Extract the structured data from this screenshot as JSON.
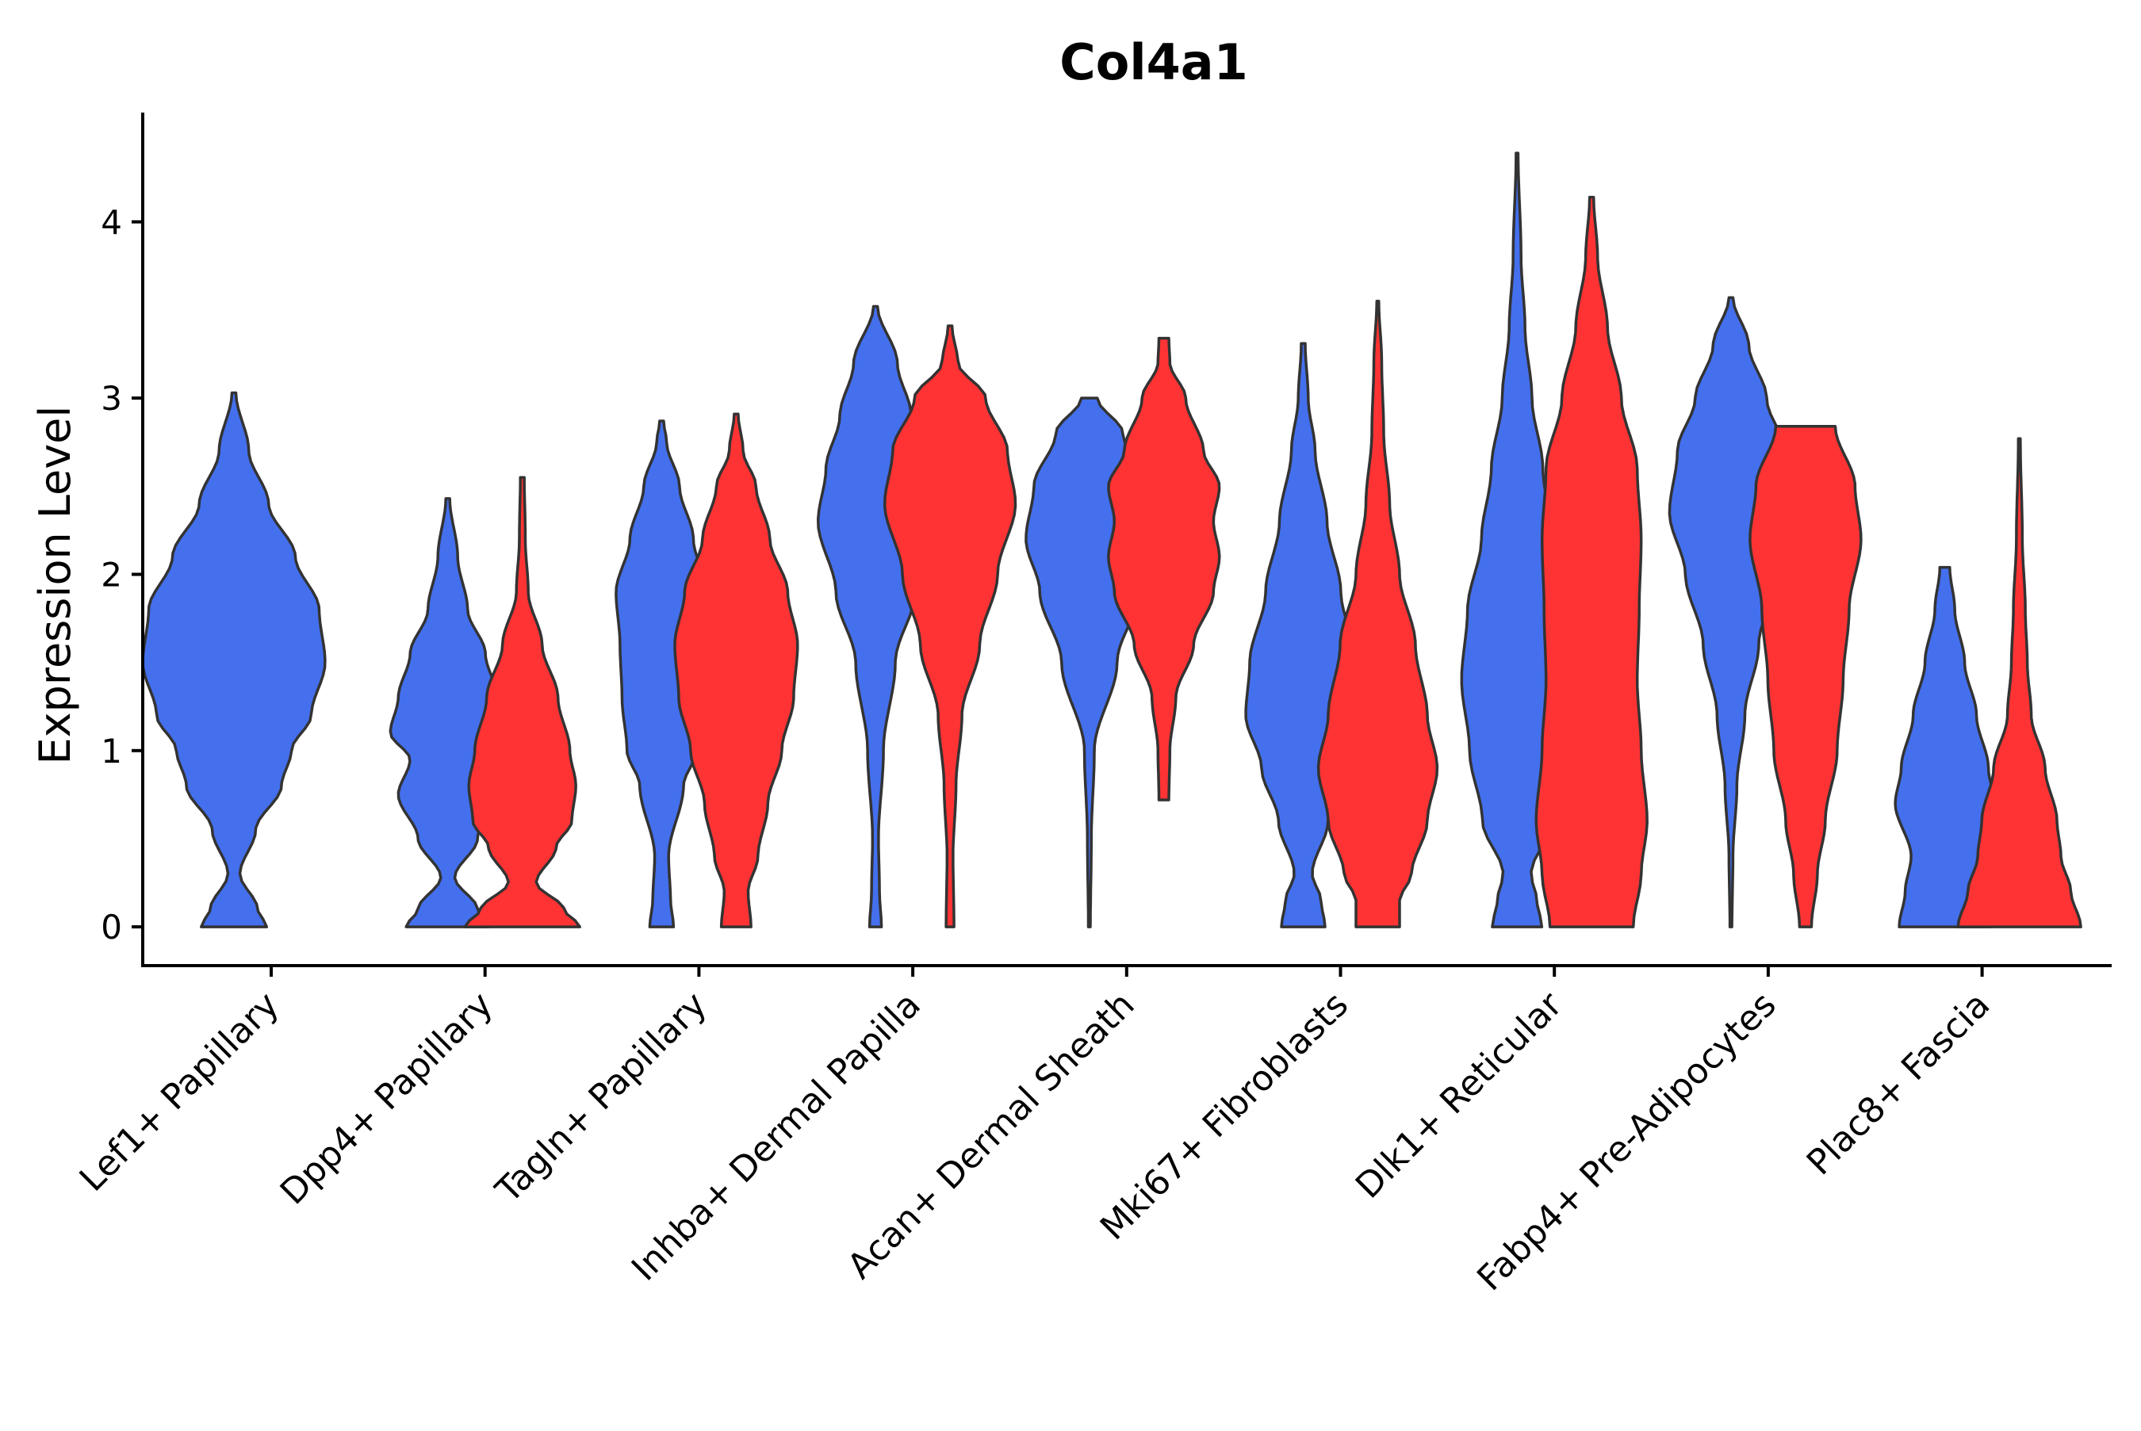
{
  "chart_data": {
    "type": "violin",
    "title": "Col4a1",
    "xlabel": "",
    "ylabel": "Expression Level",
    "ylim": [
      -0.22,
      4.62
    ],
    "yticks": [
      0,
      1,
      2,
      3,
      4
    ],
    "grid": false,
    "legend": "none",
    "colors": {
      "group_a": "#4470EE",
      "group_b": "#FF3333",
      "outline": "#333333"
    },
    "categories": [
      "Lef1+ Papillary",
      "Dpp4+ Papillary",
      "Tagln+ Papillary",
      "Inhba+ Dermal Papilla",
      "Acan+ Dermal Sheath",
      "Mki67+ Fibroblasts",
      "Dlk1+ Reticular",
      "Fabp4+ Pre-Adipocytes",
      "Plac8+ Fascia"
    ],
    "series": [
      {
        "name": "group_a",
        "color": "#4470EE",
        "violins": [
          {
            "category": "Lef1+ Papillary",
            "min": 0,
            "max": 3.03,
            "profile": [
              [
                0,
                0.33
              ],
              [
                0.1,
                0.24
              ],
              [
                0.3,
                0.06
              ],
              [
                0.55,
                0.22
              ],
              [
                0.8,
                0.48
              ],
              [
                1.0,
                0.58
              ],
              [
                1.2,
                0.78
              ],
              [
                1.5,
                0.92
              ],
              [
                1.8,
                0.86
              ],
              [
                2.1,
                0.62
              ],
              [
                2.4,
                0.35
              ],
              [
                2.7,
                0.15
              ],
              [
                3.03,
                0.02
              ]
            ]
          },
          {
            "category": "Dpp4+ Papillary",
            "min": 0,
            "max": 2.43,
            "profile": [
              [
                0,
                0.42
              ],
              [
                0.1,
                0.3
              ],
              [
                0.28,
                0.07
              ],
              [
                0.5,
                0.3
              ],
              [
                0.75,
                0.5
              ],
              [
                0.95,
                0.38
              ],
              [
                1.1,
                0.58
              ],
              [
                1.3,
                0.5
              ],
              [
                1.55,
                0.38
              ],
              [
                1.8,
                0.2
              ],
              [
                2.1,
                0.1
              ],
              [
                2.43,
                0.02
              ]
            ]
          },
          {
            "category": "Tagln+ Papillary",
            "min": 0,
            "max": 2.87,
            "profile": [
              [
                0,
                0.12
              ],
              [
                0.15,
                0.09
              ],
              [
                0.4,
                0.07
              ],
              [
                0.8,
                0.22
              ],
              [
                1.0,
                0.35
              ],
              [
                1.3,
                0.4
              ],
              [
                1.6,
                0.42
              ],
              [
                1.9,
                0.46
              ],
              [
                2.2,
                0.32
              ],
              [
                2.5,
                0.18
              ],
              [
                2.75,
                0.05
              ],
              [
                2.87,
                0.02
              ]
            ]
          },
          {
            "category": "Inhba+ Dermal Papilla",
            "min": 0,
            "max": 3.52,
            "profile": [
              [
                0,
                0.06
              ],
              [
                0.2,
                0.04
              ],
              [
                0.5,
                0.03
              ],
              [
                1.0,
                0.08
              ],
              [
                1.5,
                0.2
              ],
              [
                1.9,
                0.4
              ],
              [
                2.3,
                0.58
              ],
              [
                2.6,
                0.5
              ],
              [
                2.9,
                0.36
              ],
              [
                3.2,
                0.22
              ],
              [
                3.52,
                0.02
              ]
            ]
          },
          {
            "category": "Acan+ Dermal Sheath",
            "min": 0,
            "max": 3.0,
            "profile": [
              [
                0,
                0.01
              ],
              [
                0.5,
                0.02
              ],
              [
                1.0,
                0.05
              ],
              [
                1.5,
                0.28
              ],
              [
                1.9,
                0.5
              ],
              [
                2.2,
                0.64
              ],
              [
                2.5,
                0.56
              ],
              [
                2.8,
                0.34
              ],
              [
                3.0,
                0.08
              ]
            ]
          },
          {
            "category": "Mki67+ Fibroblasts",
            "min": 0,
            "max": 3.31,
            "profile": [
              [
                0,
                0.22
              ],
              [
                0.15,
                0.18
              ],
              [
                0.3,
                0.09
              ],
              [
                0.6,
                0.25
              ],
              [
                0.9,
                0.42
              ],
              [
                1.2,
                0.58
              ],
              [
                1.5,
                0.54
              ],
              [
                1.9,
                0.38
              ],
              [
                2.3,
                0.24
              ],
              [
                2.7,
                0.12
              ],
              [
                3.0,
                0.05
              ],
              [
                3.31,
                0.02
              ]
            ]
          },
          {
            "category": "Dlk1+ Reticular",
            "min": 0,
            "max": 4.39,
            "profile": [
              [
                0,
                0.25
              ],
              [
                0.15,
                0.2
              ],
              [
                0.3,
                0.14
              ],
              [
                0.6,
                0.35
              ],
              [
                1.0,
                0.48
              ],
              [
                1.4,
                0.56
              ],
              [
                1.8,
                0.5
              ],
              [
                2.2,
                0.36
              ],
              [
                2.6,
                0.26
              ],
              [
                3.0,
                0.15
              ],
              [
                3.4,
                0.08
              ],
              [
                3.8,
                0.04
              ],
              [
                4.39,
                0.01
              ]
            ]
          },
          {
            "category": "Fabp4+ Pre-Adipocytes",
            "min": 0,
            "max": 3.57,
            "profile": [
              [
                0,
                0.01
              ],
              [
                0.4,
                0.02
              ],
              [
                0.8,
                0.06
              ],
              [
                1.2,
                0.14
              ],
              [
                1.6,
                0.28
              ],
              [
                2.0,
                0.46
              ],
              [
                2.35,
                0.62
              ],
              [
                2.7,
                0.54
              ],
              [
                3.0,
                0.36
              ],
              [
                3.3,
                0.18
              ],
              [
                3.57,
                0.02
              ]
            ]
          },
          {
            "category": "Plac8+ Fascia",
            "min": 0,
            "max": 2.04,
            "profile": [
              [
                0,
                0.46
              ],
              [
                0.2,
                0.4
              ],
              [
                0.4,
                0.34
              ],
              [
                0.7,
                0.5
              ],
              [
                0.9,
                0.44
              ],
              [
                1.2,
                0.32
              ],
              [
                1.5,
                0.2
              ],
              [
                1.8,
                0.1
              ],
              [
                2.04,
                0.05
              ]
            ]
          }
        ]
      },
      {
        "name": "group_b",
        "color": "#FF3333",
        "violins": [
          {
            "category": "Dpp4+ Papillary",
            "min": 0,
            "max": 2.55,
            "profile": [
              [
                0,
                0.58
              ],
              [
                0.1,
                0.42
              ],
              [
                0.25,
                0.14
              ],
              [
                0.45,
                0.34
              ],
              [
                0.6,
                0.5
              ],
              [
                0.8,
                0.54
              ],
              [
                1.0,
                0.48
              ],
              [
                1.3,
                0.36
              ],
              [
                1.6,
                0.2
              ],
              [
                1.9,
                0.06
              ],
              [
                2.2,
                0.03
              ],
              [
                2.55,
                0.02
              ]
            ]
          },
          {
            "category": "Tagln+ Papillary",
            "min": 0,
            "max": 2.91,
            "profile": [
              [
                0,
                0.15
              ],
              [
                0.2,
                0.12
              ],
              [
                0.4,
                0.22
              ],
              [
                0.7,
                0.32
              ],
              [
                1.0,
                0.46
              ],
              [
                1.3,
                0.58
              ],
              [
                1.6,
                0.62
              ],
              [
                1.9,
                0.52
              ],
              [
                2.2,
                0.34
              ],
              [
                2.5,
                0.2
              ],
              [
                2.7,
                0.07
              ],
              [
                2.91,
                0.02
              ]
            ]
          },
          {
            "category": "Inhba+ Dermal Papilla",
            "min": 0,
            "max": 3.41,
            "profile": [
              [
                0,
                0.04
              ],
              [
                0.4,
                0.03
              ],
              [
                0.8,
                0.06
              ],
              [
                1.2,
                0.12
              ],
              [
                1.6,
                0.3
              ],
              [
                2.0,
                0.48
              ],
              [
                2.4,
                0.66
              ],
              [
                2.7,
                0.58
              ],
              [
                3.0,
                0.36
              ],
              [
                3.2,
                0.08
              ],
              [
                3.41,
                0.02
              ]
            ]
          },
          {
            "category": "Acan+ Dermal Sheath",
            "min": 0.72,
            "max": 3.34,
            "profile": [
              [
                0.72,
                0.05
              ],
              [
                1.0,
                0.06
              ],
              [
                1.3,
                0.12
              ],
              [
                1.6,
                0.3
              ],
              [
                1.9,
                0.5
              ],
              [
                2.1,
                0.56
              ],
              [
                2.3,
                0.5
              ],
              [
                2.5,
                0.56
              ],
              [
                2.7,
                0.4
              ],
              [
                3.0,
                0.22
              ],
              [
                3.2,
                0.06
              ],
              [
                3.34,
                0.05
              ]
            ]
          },
          {
            "category": "Mki67+ Fibroblasts",
            "min": 0,
            "max": 3.55,
            "profile": [
              [
                0,
                0.22
              ],
              [
                0.15,
                0.22
              ],
              [
                0.3,
                0.34
              ],
              [
                0.6,
                0.5
              ],
              [
                0.9,
                0.6
              ],
              [
                1.2,
                0.5
              ],
              [
                1.6,
                0.38
              ],
              [
                2.0,
                0.22
              ],
              [
                2.4,
                0.12
              ],
              [
                2.8,
                0.06
              ],
              [
                3.2,
                0.04
              ],
              [
                3.55,
                0.01
              ]
            ]
          },
          {
            "category": "Dlk1+ Reticular",
            "min": 0,
            "max": 4.14,
            "profile": [
              [
                0,
                0.42
              ],
              [
                0.3,
                0.5
              ],
              [
                0.6,
                0.56
              ],
              [
                1.0,
                0.5
              ],
              [
                1.4,
                0.46
              ],
              [
                1.8,
                0.48
              ],
              [
                2.2,
                0.5
              ],
              [
                2.6,
                0.46
              ],
              [
                3.0,
                0.3
              ],
              [
                3.4,
                0.16
              ],
              [
                3.8,
                0.06
              ],
              [
                4.14,
                0.02
              ]
            ]
          },
          {
            "category": "Fabp4+ Pre-Adipocytes",
            "min": 0,
            "max": 2.84,
            "profile": [
              [
                0,
                0.06
              ],
              [
                0.3,
                0.12
              ],
              [
                0.6,
                0.2
              ],
              [
                1.0,
                0.32
              ],
              [
                1.4,
                0.38
              ],
              [
                1.8,
                0.44
              ],
              [
                2.2,
                0.56
              ],
              [
                2.5,
                0.5
              ],
              [
                2.84,
                0.3
              ]
            ]
          },
          {
            "category": "Plac8+ Fascia",
            "min": 0,
            "max": 2.77,
            "profile": [
              [
                0,
                0.62
              ],
              [
                0.2,
                0.52
              ],
              [
                0.4,
                0.42
              ],
              [
                0.6,
                0.38
              ],
              [
                0.9,
                0.26
              ],
              [
                1.2,
                0.12
              ],
              [
                1.5,
                0.08
              ],
              [
                1.8,
                0.06
              ],
              [
                2.2,
                0.03
              ],
              [
                2.77,
                0.01
              ]
            ]
          }
        ]
      }
    ]
  }
}
